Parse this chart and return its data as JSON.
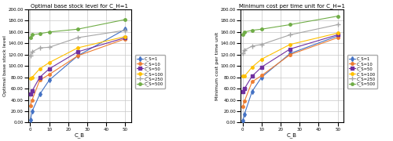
{
  "x": [
    0.1,
    1,
    5,
    10,
    25,
    50
  ],
  "left_title": "Optimal base stock level for C_H=1",
  "right_title": "Minimum cost per time unit for C_H=1",
  "xlabel": "C_B",
  "left_ylabel": "Optimal base stock level",
  "right_ylabel": "Minimum cost per time unit",
  "series": [
    {
      "label": "C_S=1",
      "color": "#4472c4",
      "marker": "d",
      "markersize": 3,
      "left_y": [
        5,
        20,
        50,
        75,
        118,
        165
      ],
      "right_y": [
        3,
        15,
        55,
        80,
        122,
        153
      ]
    },
    {
      "label": "C_S=10",
      "color": "#ed7d31",
      "marker": "o",
      "markersize": 2.5,
      "left_y": [
        30,
        40,
        75,
        85,
        118,
        148
      ],
      "right_y": [
        28,
        38,
        72,
        83,
        120,
        150
      ]
    },
    {
      "label": "C_S=50",
      "color": "#7030a0",
      "marker": "s",
      "markersize": 3,
      "left_y": [
        50,
        56,
        80,
        95,
        125,
        150
      ],
      "right_y": [
        55,
        60,
        82,
        98,
        130,
        155
      ]
    },
    {
      "label": "C_S=100",
      "color": "#ffc000",
      "marker": "o",
      "markersize": 2.5,
      "left_y": [
        78,
        80,
        95,
        106,
        132,
        152
      ],
      "right_y": [
        82,
        82,
        98,
        112,
        138,
        158
      ]
    },
    {
      "label": "C_S=250",
      "color": "#a5a5a5",
      "marker": "+",
      "markersize": 4,
      "left_y": [
        118,
        125,
        132,
        133,
        150,
        163
      ],
      "right_y": [
        122,
        128,
        135,
        138,
        155,
        173
      ]
    },
    {
      "label": "C_S=500",
      "color": "#70ad47",
      "marker": "o",
      "markersize": 2.5,
      "left_y": [
        150,
        155,
        157,
        160,
        165,
        182
      ],
      "right_y": [
        155,
        160,
        163,
        165,
        173,
        188
      ]
    }
  ],
  "ylim": [
    0,
    200
  ],
  "ytick_vals": [
    0,
    20,
    40,
    60,
    80,
    100,
    120,
    140,
    160,
    180,
    200
  ],
  "xtick_vals": [
    0,
    10,
    20,
    30,
    40,
    50
  ],
  "background_color": "#ffffff",
  "grid_color": "#c8c8c8",
  "fig_width": 5.0,
  "fig_height": 1.8
}
